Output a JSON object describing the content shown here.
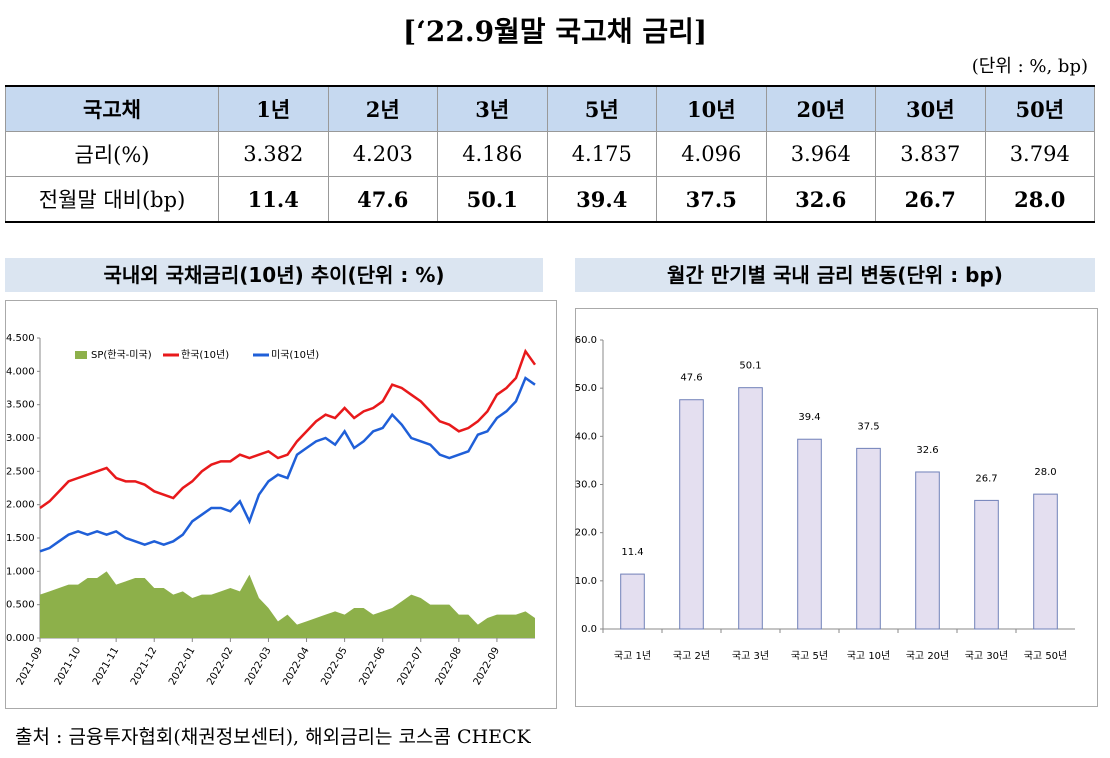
{
  "title": "[‘22.9월말 국고채 금리]",
  "unit": "(단위 : %, bp)",
  "table": {
    "header": [
      "국고채",
      "1년",
      "2년",
      "3년",
      "5년",
      "10년",
      "20년",
      "30년",
      "50년"
    ],
    "rows": [
      [
        "금리(%)",
        "3.382",
        "4.203",
        "4.186",
        "4.175",
        "4.096",
        "3.964",
        "3.837",
        "3.794"
      ],
      [
        "전월말 대비(bp)",
        "11.4",
        "47.6",
        "50.1",
        "39.4",
        "37.5",
        "32.6",
        "26.7",
        "28.0"
      ]
    ]
  },
  "chart_data": [
    {
      "type": "line",
      "title": "국내외 국채금리(10년) 추이(단위 : %)",
      "categories": [
        "2021-09",
        null,
        null,
        null,
        "2021-10",
        null,
        null,
        null,
        "2021-11",
        null,
        null,
        null,
        "2021-12",
        null,
        null,
        null,
        "2022-01",
        null,
        null,
        null,
        "2022-02",
        null,
        null,
        null,
        "2022-03",
        null,
        null,
        null,
        "2022-04",
        null,
        null,
        null,
        "2022-05",
        null,
        null,
        null,
        "2022-06",
        null,
        null,
        null,
        "2022-07",
        null,
        null,
        null,
        "2022-08",
        null,
        null,
        null,
        "2022-09",
        null,
        null,
        null,
        null
      ],
      "series": [
        {
          "name": "SP(한국-미국)",
          "color": "#8db04a",
          "kind": "area",
          "values": [
            0.65,
            0.7,
            0.75,
            0.8,
            0.8,
            0.9,
            0.9,
            1.0,
            0.8,
            0.85,
            0.9,
            0.9,
            0.75,
            0.75,
            0.65,
            0.7,
            0.6,
            0.65,
            0.65,
            0.7,
            0.75,
            0.7,
            0.95,
            0.6,
            0.45,
            0.25,
            0.35,
            0.2,
            0.25,
            0.3,
            0.35,
            0.4,
            0.35,
            0.45,
            0.45,
            0.35,
            0.4,
            0.45,
            0.55,
            0.65,
            0.6,
            0.5,
            0.5,
            0.5,
            0.35,
            0.35,
            0.2,
            0.3,
            0.35,
            0.35,
            0.35,
            0.4,
            0.3
          ]
        },
        {
          "name": "한국(10년)",
          "color": "#e8191b",
          "kind": "line",
          "values": [
            1.95,
            2.05,
            2.2,
            2.35,
            2.4,
            2.45,
            2.5,
            2.55,
            2.4,
            2.35,
            2.35,
            2.3,
            2.2,
            2.15,
            2.1,
            2.25,
            2.35,
            2.5,
            2.6,
            2.65,
            2.65,
            2.75,
            2.7,
            2.75,
            2.8,
            2.7,
            2.75,
            2.95,
            3.1,
            3.25,
            3.35,
            3.3,
            3.45,
            3.3,
            3.4,
            3.45,
            3.55,
            3.8,
            3.75,
            3.65,
            3.55,
            3.4,
            3.25,
            3.2,
            3.1,
            3.15,
            3.25,
            3.4,
            3.65,
            3.75,
            3.9,
            4.3,
            4.1
          ]
        },
        {
          "name": "미국(10년)",
          "color": "#1f5fd8",
          "kind": "line",
          "values": [
            1.3,
            1.35,
            1.45,
            1.55,
            1.6,
            1.55,
            1.6,
            1.55,
            1.6,
            1.5,
            1.45,
            1.4,
            1.45,
            1.4,
            1.45,
            1.55,
            1.75,
            1.85,
            1.95,
            1.95,
            1.9,
            2.05,
            1.75,
            2.15,
            2.35,
            2.45,
            2.4,
            2.75,
            2.85,
            2.95,
            3.0,
            2.9,
            3.1,
            2.85,
            2.95,
            3.1,
            3.15,
            3.35,
            3.2,
            3.0,
            2.95,
            2.9,
            2.75,
            2.7,
            2.75,
            2.8,
            3.05,
            3.1,
            3.3,
            3.4,
            3.55,
            3.9,
            3.8
          ]
        }
      ],
      "ylim": [
        0,
        4.5
      ],
      "yticks": [
        {
          "value": 0,
          "label": "0.000"
        },
        {
          "value": 0.5,
          "label": "0.500"
        },
        {
          "value": 1,
          "label": "1.000"
        },
        {
          "value": 1.5,
          "label": "1.500"
        },
        {
          "value": 2,
          "label": "2.000"
        },
        {
          "value": 2.5,
          "label": "2.500"
        },
        {
          "value": 3,
          "label": "3.000"
        },
        {
          "value": 3.5,
          "label": "3.500"
        },
        {
          "value": 4,
          "label": "4.000"
        },
        {
          "value": 4.5,
          "label": "4.500"
        }
      ],
      "grid": false,
      "legend": "top-left"
    },
    {
      "type": "bar",
      "title": "월간 만기별 국내 금리 변동(단위 : bp)",
      "categories": [
        "국고 1년",
        "국고 2년",
        "국고 3년",
        "국고 5년",
        "국고 10년",
        "국고 20년",
        "국고 30년",
        "국고 50년"
      ],
      "values": [
        11.4,
        47.6,
        50.1,
        39.4,
        37.5,
        32.6,
        26.7,
        28.0
      ],
      "value_labels": [
        "11.4",
        "47.6",
        "50.1",
        "39.4",
        "37.5",
        "32.6",
        "26.7",
        "28.0"
      ],
      "color": "#e4dff0",
      "edge_color": "#7080b8",
      "ylim": [
        0,
        60
      ],
      "yticks": [
        {
          "value": 0,
          "label": "0.0"
        },
        {
          "value": 10,
          "label": "10.0"
        },
        {
          "value": 20,
          "label": "20.0"
        },
        {
          "value": 30,
          "label": "30.0"
        },
        {
          "value": 40,
          "label": "40.0"
        },
        {
          "value": 50,
          "label": "50.0"
        },
        {
          "value": 60,
          "label": "60.0"
        }
      ],
      "grid": false
    }
  ],
  "source": "출처 : 금융투자협회(채권정보센터), 해외금리는 코스콤 CHECK"
}
